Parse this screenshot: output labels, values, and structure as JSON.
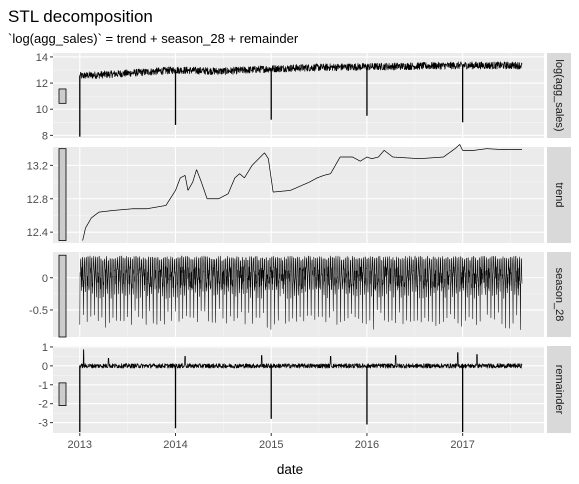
{
  "chart_data": {
    "type": "line",
    "title": "STL decomposition",
    "subtitle": "`log(agg_sales)` = trend + season_28 + remainder",
    "xlabel": "date",
    "x_ticks": [
      "2013",
      "2014",
      "2015",
      "2016",
      "2017"
    ],
    "x_range": [
      2012.72,
      2017.85
    ],
    "grid": true,
    "panels": [
      {
        "name": "log(agg_sales)",
        "ylim": [
          7.8,
          14.3
        ],
        "y_ticks": [
          8,
          10,
          12,
          14
        ],
        "scale_bar": [
          10.45,
          11.55
        ],
        "series": {
          "start": 2013.0,
          "end": 2017.62,
          "knots": [
            [
              2013.0,
              12.55
            ],
            [
              2013.5,
              12.75
            ],
            [
              2014.0,
              13.0
            ],
            [
              2014.5,
              12.9
            ],
            [
              2015.0,
              13.1
            ],
            [
              2015.5,
              13.2
            ],
            [
              2016.0,
              13.25
            ],
            [
              2016.5,
              13.3
            ],
            [
              2017.0,
              13.35
            ],
            [
              2017.62,
              13.35
            ]
          ],
          "noise": 0.28,
          "spikes": [
            [
              2013.0,
              7.9
            ],
            [
              2014.0,
              8.8
            ],
            [
              2015.0,
              9.2
            ],
            [
              2016.0,
              9.5
            ],
            [
              2017.0,
              9.0
            ]
          ]
        }
      },
      {
        "name": "trend",
        "ylim": [
          12.27,
          13.42
        ],
        "y_ticks": [
          12.4,
          12.8,
          13.2
        ],
        "scale_bar": [
          12.3,
          13.4
        ],
        "series": {
          "start": 2013.03,
          "end": 2017.62,
          "knots": [
            [
              2013.03,
              12.3
            ],
            [
              2013.06,
              12.45
            ],
            [
              2013.12,
              12.57
            ],
            [
              2013.2,
              12.64
            ],
            [
              2013.35,
              12.66
            ],
            [
              2013.55,
              12.68
            ],
            [
              2013.7,
              12.68
            ],
            [
              2013.9,
              12.72
            ],
            [
              2014.0,
              12.9
            ],
            [
              2014.05,
              13.05
            ],
            [
              2014.1,
              13.08
            ],
            [
              2014.13,
              12.9
            ],
            [
              2014.18,
              13.0
            ],
            [
              2014.22,
              13.15
            ],
            [
              2014.27,
              13.0
            ],
            [
              2014.33,
              12.8
            ],
            [
              2014.45,
              12.8
            ],
            [
              2014.55,
              12.86
            ],
            [
              2014.62,
              13.05
            ],
            [
              2014.67,
              13.1
            ],
            [
              2014.72,
              13.05
            ],
            [
              2014.8,
              13.2
            ],
            [
              2014.93,
              13.35
            ],
            [
              2014.97,
              13.28
            ],
            [
              2015.02,
              12.88
            ],
            [
              2015.2,
              12.9
            ],
            [
              2015.3,
              12.95
            ],
            [
              2015.4,
              13.0
            ],
            [
              2015.48,
              13.05
            ],
            [
              2015.55,
              13.08
            ],
            [
              2015.62,
              13.1
            ],
            [
              2015.72,
              13.3
            ],
            [
              2015.85,
              13.3
            ],
            [
              2015.93,
              13.25
            ],
            [
              2016.0,
              13.3
            ],
            [
              2016.05,
              13.28
            ],
            [
              2016.12,
              13.3
            ],
            [
              2016.18,
              13.38
            ],
            [
              2016.27,
              13.3
            ],
            [
              2016.55,
              13.28
            ],
            [
              2016.8,
              13.3
            ],
            [
              2016.92,
              13.4
            ],
            [
              2016.97,
              13.45
            ],
            [
              2017.0,
              13.38
            ],
            [
              2017.12,
              13.38
            ],
            [
              2017.25,
              13.4
            ],
            [
              2017.4,
              13.39
            ],
            [
              2017.62,
              13.39
            ]
          ],
          "noise": 0.0,
          "spikes": []
        }
      },
      {
        "name": "season_28",
        "ylim": [
          -0.92,
          0.4
        ],
        "y_ticks": [
          -0.5,
          0.0
        ],
        "scale_bar": [
          -0.92,
          0.35
        ],
        "series": {
          "start": 2013.0,
          "end": 2017.62,
          "knots": [
            [
              2013.0,
              0.05
            ],
            [
              2017.62,
              0.05
            ]
          ],
          "noise": 0.0,
          "seasonal": {
            "period": 0.0767,
            "high": 0.34,
            "mid": 0.0,
            "low": -0.25,
            "deep": -0.75
          },
          "spikes": []
        }
      },
      {
        "name": "remainder",
        "ylim": [
          -3.55,
          1.05
        ],
        "y_ticks": [
          -3,
          -2,
          -1,
          0,
          1
        ],
        "scale_bar": [
          -2.1,
          -0.9
        ],
        "series": {
          "start": 2013.0,
          "end": 2017.62,
          "knots": [
            [
              2013.0,
              0.0
            ],
            [
              2017.62,
              0.0
            ]
          ],
          "noise": 0.12,
          "spikes": [
            [
              2013.0,
              -3.5
            ],
            [
              2014.0,
              -3.3
            ],
            [
              2015.0,
              -2.8
            ],
            [
              2016.0,
              -3.1
            ],
            [
              2017.0,
              -3.5
            ]
          ],
          "bumps": [
            [
              2013.04,
              0.85
            ],
            [
              2013.3,
              0.4
            ],
            [
              2014.1,
              0.5
            ],
            [
              2014.9,
              0.55
            ],
            [
              2015.62,
              0.5
            ],
            [
              2016.3,
              0.55
            ],
            [
              2016.95,
              0.7
            ],
            [
              2017.15,
              0.6
            ]
          ]
        }
      }
    ]
  }
}
